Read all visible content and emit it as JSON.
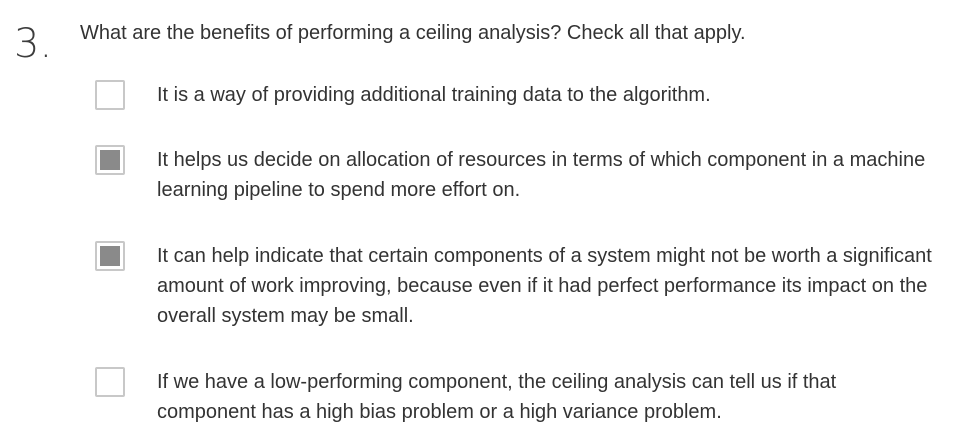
{
  "question": {
    "number": "3.",
    "text": "What are the benefits of performing a ceiling analysis? Check all that apply."
  },
  "options": [
    {
      "label": "It is a way of providing additional training data to the algorithm.",
      "checked": false
    },
    {
      "label": "It helps us decide on allocation of resources in terms of which component in a machine learning pipeline to spend more effort on.",
      "checked": true
    },
    {
      "label": "It can help indicate that certain components of a system might not be worth a significant amount of work improving, because even if it had perfect performance its impact on the overall system may be small.",
      "checked": true
    },
    {
      "label": "If we have a low-performing component, the ceiling analysis can tell us if that component has a high bias problem or a high variance problem.",
      "checked": false
    }
  ]
}
